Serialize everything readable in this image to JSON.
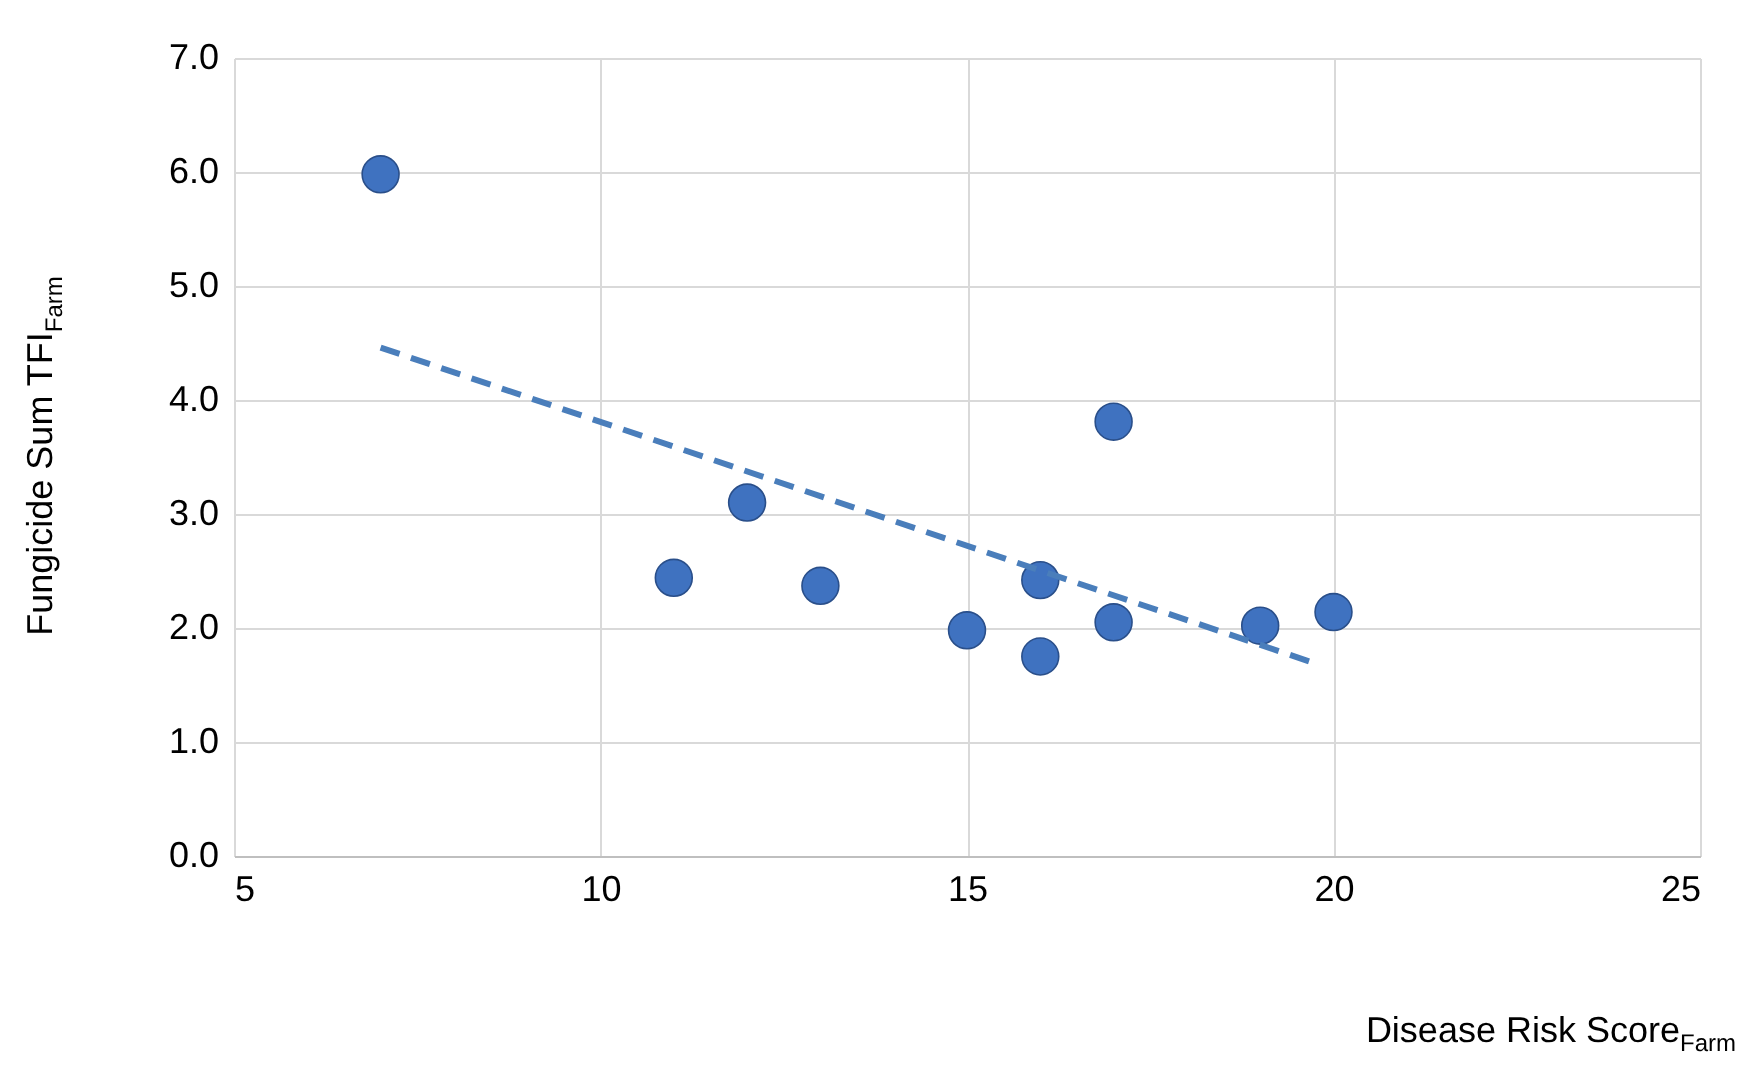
{
  "chart_data": {
    "type": "scatter",
    "xlabel": "Disease Risk Score$_{Farm}$",
    "ylabel": "Fungicide Sum TFI$_{Farm}$",
    "xlim": [
      5,
      25
    ],
    "xticks": [
      5,
      10,
      15,
      20,
      25
    ],
    "ylim": [
      0,
      7
    ],
    "yticks": [
      {
        "value": 0,
        "label": "0.0"
      },
      {
        "value": 1,
        "label": "1.0"
      },
      {
        "value": 2,
        "label": "2.0"
      },
      {
        "value": 3,
        "label": "3.0"
      },
      {
        "value": 4,
        "label": "4.0"
      },
      {
        "value": 5,
        "label": "5.0"
      },
      {
        "value": 6,
        "label": "6.0"
      },
      {
        "value": 7,
        "label": "7.0"
      }
    ],
    "grid": true,
    "series": [
      {
        "color": "#3f72c0",
        "marker": "circle",
        "x": [
          7,
          11,
          12,
          13,
          15,
          16,
          16,
          17,
          17,
          19,
          20
        ],
        "values": [
          5.98,
          2.44,
          3.1,
          2.37,
          1.98,
          2.42,
          1.75,
          3.81,
          2.05,
          2.02,
          2.14
        ]
      },
      {
        "type": "line",
        "color": "#4a7ebb",
        "line_style": "dashed",
        "x": [
          7,
          19.7
        ],
        "values": [
          4.46,
          1.7
        ]
      }
    ]
  }
}
